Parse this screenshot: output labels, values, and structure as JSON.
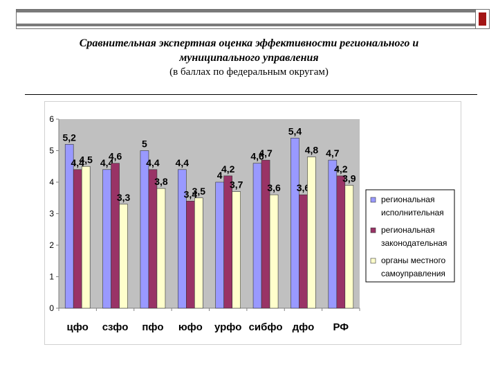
{
  "title": "Сравнительная экспертная оценка эффективности регионального и муниципального управления",
  "title_line1": "Сравнительная экспертная оценка эффективности регионального и",
  "title_line2": "муниципального управления",
  "subtitle": "(в баллах по федеральным округам)",
  "colors": {
    "series1": "#9999ff",
    "series2": "#993366",
    "series3": "#ffffcc",
    "plot_bg": "#c0c0c0",
    "top_bar": "#7a7a7a",
    "corner_accent": "#a31515"
  },
  "chart_data": {
    "type": "bar",
    "categories": [
      "цфо",
      "сзфо",
      "пфо",
      "юфо",
      "урфо",
      "сибфо",
      "дфо",
      "РФ"
    ],
    "series": [
      {
        "name": "региональная исполнительная",
        "name_lines": [
          "региональная",
          "исполнительная"
        ],
        "values": [
          5.2,
          4.4,
          5,
          4.4,
          4,
          4.6,
          5.4,
          4.7
        ]
      },
      {
        "name": "региональная законодательная",
        "name_lines": [
          "региональная",
          "законодательная"
        ],
        "values": [
          4.4,
          4.6,
          4.4,
          3.4,
          4.2,
          4.7,
          3.6,
          4.2
        ]
      },
      {
        "name": "органы местного самоуправления",
        "name_lines": [
          "органы местного",
          "самоуправления"
        ],
        "values": [
          4.5,
          3.3,
          3.8,
          3.5,
          3.7,
          3.6,
          4.8,
          3.9
        ]
      }
    ],
    "value_labels": [
      [
        "5,2",
        "4,4",
        "5",
        "4,4",
        "4",
        "4,6",
        "5,4",
        "4,7"
      ],
      [
        "4,4",
        "4,6",
        "4,4",
        "3,4",
        "4,2",
        "4,7",
        "3,6",
        "4,2"
      ],
      [
        "4,5",
        "3,3",
        "3,8",
        "3,5",
        "3,7",
        "3,6",
        "4,8",
        "3,9"
      ]
    ],
    "ylim": [
      0,
      6
    ],
    "yticks": [
      0,
      1,
      2,
      3,
      4,
      5,
      6
    ],
    "grid": false,
    "legend": "right"
  }
}
